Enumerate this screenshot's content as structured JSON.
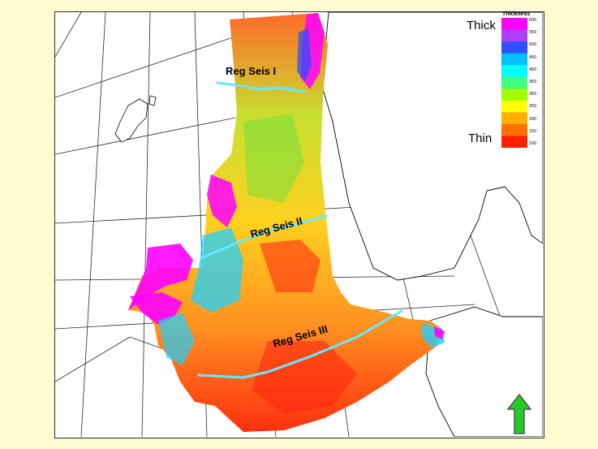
{
  "map": {
    "section_labels": [
      "Reg Seis I",
      "Reg Seis II",
      "Reg Seis III"
    ]
  },
  "legend": {
    "title": "Thickness",
    "thick_label": "Thick",
    "thin_label": "Thin",
    "ticks": [
      "600",
      "550",
      "500",
      "450",
      "400",
      "350",
      "300",
      "250",
      "200",
      "150",
      "100"
    ],
    "colors": [
      "#ff00ff",
      "#b040ff",
      "#3050ff",
      "#00c0ff",
      "#00ffff",
      "#40ff80",
      "#a0ff00",
      "#ffff00",
      "#ffb000",
      "#ff7000",
      "#ff2000"
    ]
  },
  "north_arrow": {
    "color": "#22cc22"
  }
}
